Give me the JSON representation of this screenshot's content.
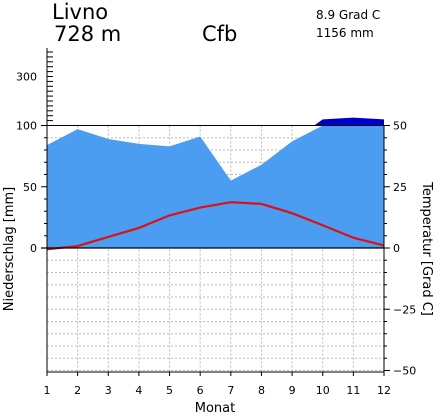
{
  "header": {
    "station": "Livno",
    "elevation": "728 m",
    "climate_class": "Cfb",
    "mean_temperature": "8.9 Grad C",
    "annual_precipitation": "1156 mm"
  },
  "chart_data": {
    "type": "area",
    "title": "",
    "xlabel": "Monat",
    "ylabel_left": "Niederschlag [mm]",
    "ylabel_right": "Temperatur [Grad C]",
    "x": [
      1,
      2,
      3,
      4,
      5,
      6,
      7,
      8,
      9,
      10,
      11,
      12
    ],
    "x_tick_labels": [
      "1",
      "2",
      "3",
      "4",
      "5",
      "6",
      "7",
      "8",
      "9",
      "10",
      "11",
      "12"
    ],
    "precip_tick_labels": [
      "0",
      "50",
      "100",
      "300"
    ],
    "temp_tick_labels": [
      "−50",
      "−25",
      "0",
      "25",
      "50"
    ],
    "precip_ylim": [
      0,
      100
    ],
    "precip_break_at": 100,
    "temp_ylim": [
      -50,
      50
    ],
    "grid": true,
    "series": [
      {
        "kind": "precipitation",
        "unit": "mm",
        "values": [
          84,
          97,
          89,
          85,
          83,
          91,
          55,
          68,
          87,
          125,
          132,
          125
        ],
        "color": "#4a9df0",
        "excess_color": "#0000cc"
      },
      {
        "kind": "temperature",
        "unit": "Grad C",
        "values": [
          -0.5,
          0.8,
          4.5,
          8.2,
          13.3,
          16.5,
          18.7,
          18.0,
          14.2,
          9.3,
          4.2,
          1.0
        ],
        "color": "#dd1111"
      }
    ]
  }
}
